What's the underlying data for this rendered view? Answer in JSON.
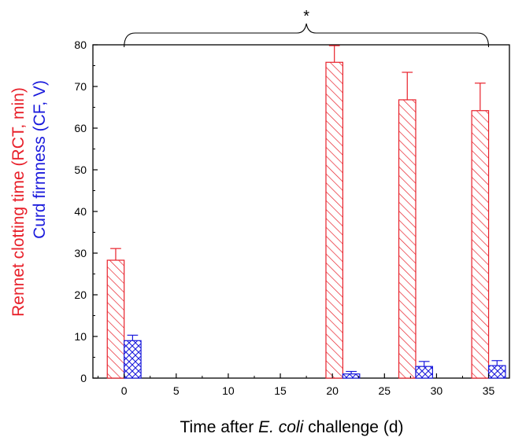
{
  "chart_data": {
    "type": "bar",
    "title": "",
    "xlabel": {
      "prefix": "Time after ",
      "italic": "E. coli",
      "suffix": " challenge (d)"
    },
    "ylabel_lines": [
      {
        "text": "Rennet clotting time (RCT, min)",
        "color": "#e8202a"
      },
      {
        "text": "Curd firmness (CF, V)",
        "color": "#1a1adc"
      }
    ],
    "xlim": [
      -3,
      37
    ],
    "ylim": [
      0,
      80
    ],
    "x_ticks": [
      "0",
      "5",
      "10",
      "15",
      "20",
      "25",
      "30",
      "35"
    ],
    "y_ticks": [
      "0",
      "10",
      "20",
      "30",
      "40",
      "50",
      "60",
      "70",
      "80"
    ],
    "x_tick_values": [
      0,
      5,
      10,
      15,
      20,
      25,
      30,
      35
    ],
    "y_tick_values": [
      0,
      10,
      20,
      30,
      40,
      50,
      60,
      70,
      80
    ],
    "x": [
      0,
      21,
      28,
      35
    ],
    "series": [
      {
        "name": "Rennet clotting time (RCT, min)",
        "color": "#e8202a",
        "pattern": "diagonal-hatch",
        "values": [
          28.3,
          75.8,
          66.8,
          64.2
        ],
        "errors": [
          2.8,
          4.0,
          6.6,
          6.6
        ]
      },
      {
        "name": "Curd firmness (CF, V)",
        "color": "#1a1adc",
        "pattern": "cross-hatch",
        "values": [
          9.0,
          1.0,
          2.8,
          3.0
        ],
        "errors": [
          1.3,
          0.6,
          1.2,
          1.2
        ]
      }
    ],
    "annotation": {
      "text": "*",
      "from_x": 0,
      "to_x": 35,
      "note": "brace spanning all days"
    },
    "grid": false,
    "legend": "none"
  }
}
